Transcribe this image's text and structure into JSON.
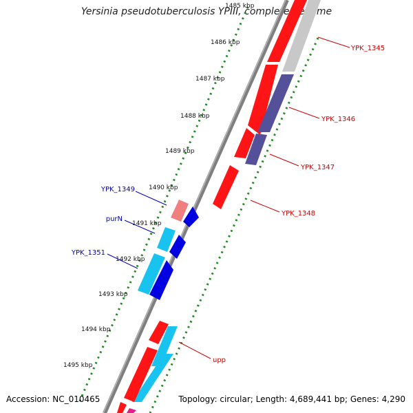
{
  "title": "Yersinia pseudotuberculosis YPIII, complete genome",
  "accession": "Accession: NC_010465",
  "topology": "Topology: circular; Length: 4,689,441 bp; Genes: 4,290",
  "ruler": [
    "1485 kbp",
    "1486 kbp",
    "1487 kbp",
    "1488 kbp",
    "1489 kbp",
    "1490 kbp",
    "1491 kbp",
    "1492 kbp",
    "1493 kbp",
    "1494 kbp",
    "1495 kbp"
  ],
  "genes_right": [
    "YPK_1345",
    "YPK_1346",
    "YPK_1347",
    "YPK_1348",
    "upp"
  ],
  "genes_left": [
    "YPK_1349",
    "purN",
    "YPK_1351"
  ],
  "colors": {
    "backbone": "#8a8a8a",
    "forward_gene": "#ff1010",
    "reverse_gene": "#0000e0",
    "cds_light_blue": "#19c3f0",
    "cds_pale_red": "#f08080",
    "cds_purple": "#55509a",
    "cds_grey": "#c8c8c8",
    "cds_magenta": "#e0208c",
    "ruler_dots": "#228b22",
    "label_red": "#cc0000",
    "label_blue": "#0000bb"
  }
}
